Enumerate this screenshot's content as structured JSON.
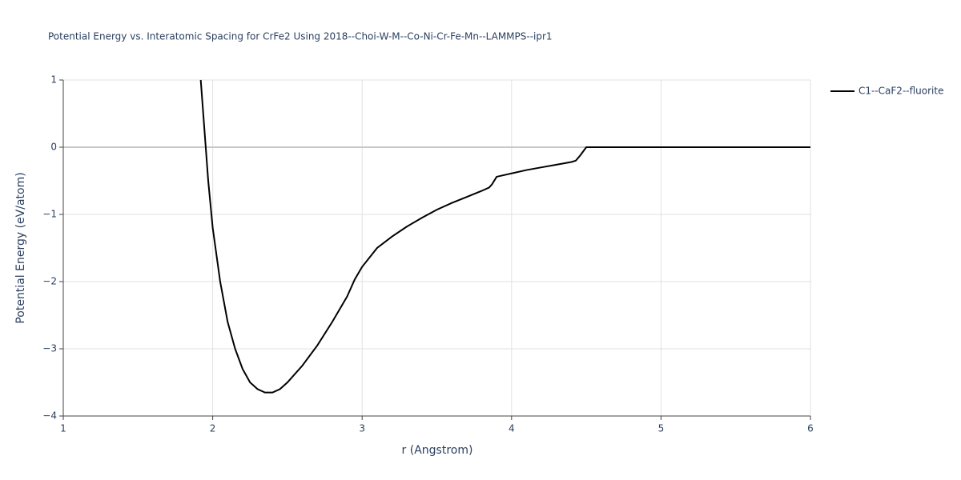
{
  "chart_data": {
    "type": "line",
    "title": "Potential Energy vs. Interatomic Spacing for CrFe2 Using 2018--Choi-W-M--Co-Ni-Cr-Fe-Mn--LAMMPS--ipr1",
    "x_label": "r (Angstrom)",
    "y_label": "Potential Energy (eV/atom)",
    "x": [
      1.92,
      1.95,
      1.97,
      2.0,
      2.05,
      2.1,
      2.15,
      2.2,
      2.25,
      2.3,
      2.35,
      2.4,
      2.45,
      2.5,
      2.6,
      2.7,
      2.8,
      2.9,
      2.95,
      3.0,
      3.1,
      3.2,
      3.3,
      3.4,
      3.5,
      3.6,
      3.7,
      3.8,
      3.85,
      3.87,
      3.9,
      4.0,
      4.1,
      4.2,
      4.3,
      4.4,
      4.43,
      4.46,
      4.5,
      6.0
    ],
    "series": [
      {
        "name": "C1--CaF2--fluorite",
        "color": "#000000",
        "values": [
          1.0,
          0.1,
          -0.5,
          -1.2,
          -2.0,
          -2.6,
          -3.0,
          -3.3,
          -3.5,
          -3.6,
          -3.65,
          -3.65,
          -3.6,
          -3.5,
          -3.25,
          -2.95,
          -2.6,
          -2.22,
          -1.97,
          -1.78,
          -1.5,
          -1.33,
          -1.18,
          -1.05,
          -0.93,
          -0.83,
          -0.74,
          -0.65,
          -0.6,
          -0.55,
          -0.44,
          -0.39,
          -0.34,
          -0.3,
          -0.26,
          -0.22,
          -0.2,
          -0.12,
          0.0,
          0.0
        ]
      }
    ],
    "xlim": [
      1,
      6
    ],
    "xticks": [
      1,
      2,
      3,
      4,
      5,
      6
    ],
    "ylim": [
      -4,
      1
    ],
    "yticks": [
      {
        "value": -4,
        "label": "−4"
      },
      {
        "value": -3,
        "label": "−3"
      },
      {
        "value": -2,
        "label": "−2"
      },
      {
        "value": -1,
        "label": "−1"
      },
      0,
      1
    ],
    "grid": true,
    "legend": "right"
  }
}
